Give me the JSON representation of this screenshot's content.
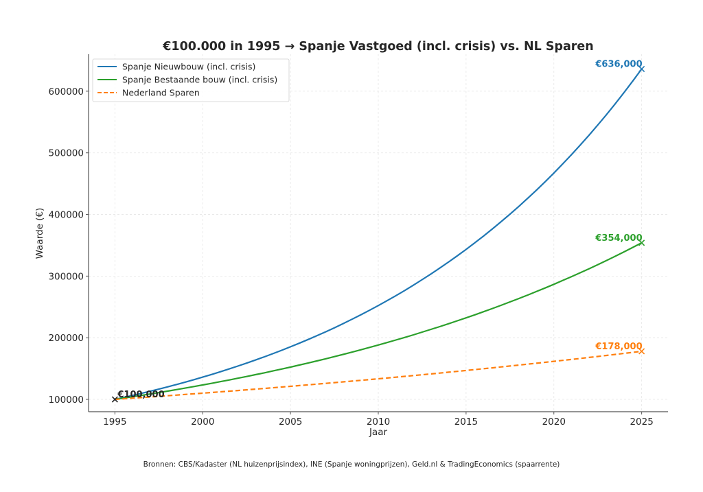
{
  "chart_data": {
    "type": "line",
    "title": "€100.000 in 1995 → Spanje Vastgoed (incl. crisis) vs. NL Sparen",
    "xlabel": "Jaar",
    "ylabel": "Waarde (€)",
    "xlim": [
      1993.5,
      2026.5
    ],
    "ylim": [
      80000,
      660000
    ],
    "xticks": [
      1995,
      2000,
      2005,
      2010,
      2015,
      2020,
      2025
    ],
    "xtick_labels": [
      "1995",
      "2000",
      "2005",
      "2010",
      "2015",
      "2020",
      "2025"
    ],
    "yticks": [
      100000,
      200000,
      300000,
      400000,
      500000,
      600000
    ],
    "ytick_labels": [
      "100000",
      "200000",
      "300000",
      "400000",
      "500000",
      "600000"
    ],
    "grid": true,
    "legend_position": "top-left",
    "x": [
      1995,
      2000,
      2005,
      2010,
      2015,
      2020,
      2025
    ],
    "series": [
      {
        "name": "Spanje Nieuwbouw (incl. crisis)",
        "color": "#1f77b4",
        "style": "solid",
        "values": [
          100000,
          136100,
          185300,
          252200,
          343300,
          467200,
          636000
        ],
        "end_label": "€636,000"
      },
      {
        "name": "Spanje Bestaande bouw (incl. crisis)",
        "color": "#2ca02c",
        "style": "solid",
        "values": [
          100000,
          123400,
          152400,
          188200,
          232300,
          286700,
          354000
        ],
        "end_label": "€354,000"
      },
      {
        "name": "Nederland Sparen",
        "color": "#ff7f0e",
        "style": "dashed",
        "values": [
          100000,
          110100,
          121200,
          133400,
          146900,
          161700,
          178000
        ],
        "end_label": "€178,000"
      }
    ],
    "annotations": [
      {
        "text": "€100,000",
        "x": 1995,
        "y": 100000,
        "color": "#262626"
      }
    ]
  },
  "footer": {
    "source": "Bronnen: CBS/Kadaster (NL huizenprijsindex), INE (Spanje woningprijzen), Geld.nl & TradingEconomics (spaarrente)"
  }
}
